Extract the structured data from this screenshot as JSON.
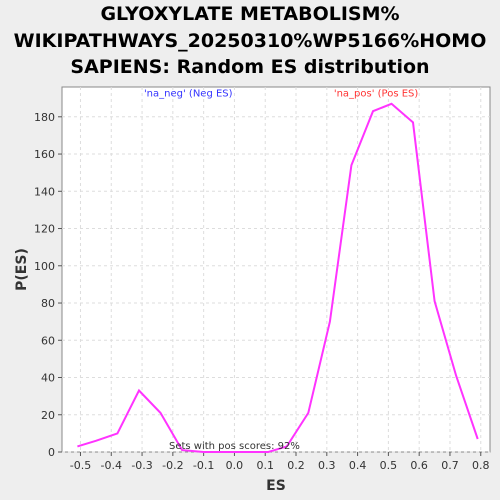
{
  "title_lines": [
    "GLYOXYLATE METABOLISM%",
    "WIKIPATHWAYS_20250310%WP5166%HOMO",
    "SAPIENS: Random ES distribution"
  ],
  "colors": {
    "line": "#ff33ff",
    "neg_annotation": "#3333ff",
    "pos_annotation": "#ff3333",
    "plot_bg": "#ffffff",
    "page_bg": "#eeeeee",
    "grid": "#dddddd"
  },
  "chart_data": {
    "type": "line",
    "title": "GLYOXYLATE METABOLISM% WIKIPATHWAYS_20250310%WP5166%HOMO SAPIENS: Random ES distribution",
    "xlabel": "ES",
    "ylabel": "P(ES)",
    "xlim": [
      -0.56,
      0.83
    ],
    "ylim": [
      0,
      196
    ],
    "xticks": [
      -0.5,
      -0.4,
      -0.3,
      -0.2,
      -0.1,
      0.0,
      0.1,
      0.2,
      0.3,
      0.4,
      0.5,
      0.6,
      0.7,
      0.8
    ],
    "xtick_labels": [
      "-0.5",
      "-0.4",
      "-0.3",
      "-0.2",
      "-0.1",
      "0.0",
      "0.1",
      "0.2",
      "0.3",
      "0.4",
      "0.5",
      "0.6",
      "0.7",
      "0.8"
    ],
    "yticks": [
      0,
      20,
      40,
      60,
      80,
      100,
      120,
      140,
      160,
      180
    ],
    "ytick_labels": [
      "0",
      "20",
      "40",
      "60",
      "80",
      "100",
      "120",
      "140",
      "160",
      "180"
    ],
    "grid": true,
    "series": [
      {
        "x": [
          -0.51,
          -0.45,
          -0.38,
          -0.31,
          -0.24,
          -0.17,
          -0.1,
          -0.03,
          0.04,
          0.11,
          0.17,
          0.24,
          0.31,
          0.38,
          0.45,
          0.51,
          0.58,
          0.65,
          0.72,
          0.79
        ],
        "y": [
          3,
          6,
          10,
          33,
          21,
          1,
          0,
          0,
          0,
          0,
          3,
          21,
          70,
          154,
          183,
          187,
          177,
          81,
          41,
          7
        ]
      }
    ],
    "annotations": [
      {
        "text": "'na_neg' (Neg ES)",
        "x": -0.15,
        "y": 191,
        "color": "#3333ff"
      },
      {
        "text": "'na_pos' (Pos ES)",
        "x": 0.46,
        "y": 191,
        "color": "#ff3333"
      },
      {
        "text": "Sets with pos scores: 92%",
        "x": 0.0,
        "y": 1.5,
        "color": "#333333"
      }
    ]
  }
}
